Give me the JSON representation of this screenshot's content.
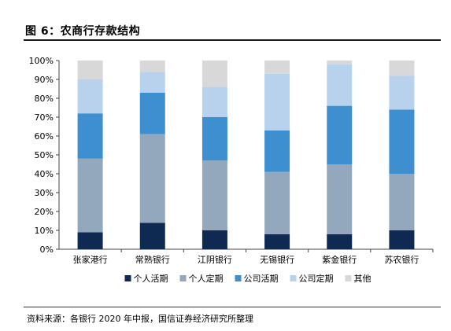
{
  "header": {
    "title": "图 6：农商行存款结构"
  },
  "footer": {
    "source": "资料来源：各银行 2020 年中报，国信证券经济研究所整理"
  },
  "colors": {
    "个人活期": "#0f2a52",
    "个人定期": "#93a8bc",
    "公司活期": "#3d8fd0",
    "公司定期": "#b8d2ee",
    "其他": "#d8d8d8"
  },
  "chart_data": {
    "type": "bar",
    "stacked": true,
    "categories": [
      "张家港行",
      "常熟银行",
      "江阴银行",
      "无锡银行",
      "紫金银行",
      "苏农银行"
    ],
    "series": [
      {
        "name": "个人活期",
        "values": [
          9,
          14,
          10,
          8,
          8,
          10
        ]
      },
      {
        "name": "个人定期",
        "values": [
          39,
          47,
          37,
          33,
          37,
          30
        ]
      },
      {
        "name": "公司活期",
        "values": [
          24,
          22,
          23,
          22,
          31,
          34
        ]
      },
      {
        "name": "公司定期",
        "values": [
          18,
          11,
          16,
          30,
          22,
          18
        ]
      },
      {
        "name": "其他",
        "values": [
          10,
          6,
          14,
          7,
          2,
          8
        ]
      }
    ],
    "yticks": [
      "0%",
      "10%",
      "20%",
      "30%",
      "40%",
      "50%",
      "60%",
      "70%",
      "80%",
      "90%",
      "100%"
    ],
    "ylim": [
      0,
      100
    ],
    "legend_position": "bottom",
    "grid": false
  }
}
